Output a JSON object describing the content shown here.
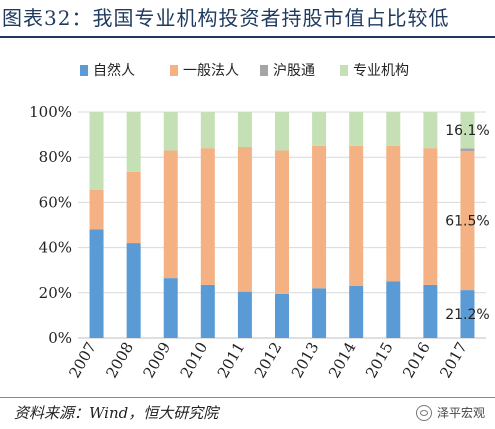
{
  "title": "图表32：我国专业机构投资者持股市值占比较低",
  "source": "资料来源：Wind，恒大研究院",
  "watermark": "泽平宏观",
  "chart_data": {
    "type": "bar",
    "stacked": true,
    "normalized": true,
    "categories": [
      "2007",
      "2008",
      "2009",
      "2010",
      "2011",
      "2012",
      "2013",
      "2014",
      "2015",
      "2016",
      "2017"
    ],
    "series": [
      {
        "name": "自然人",
        "color": "#5b9bd5",
        "values": [
          48,
          42,
          26.5,
          23.5,
          20.5,
          19.5,
          22,
          23,
          25,
          23.5,
          21.2
        ]
      },
      {
        "name": "一般法人",
        "color": "#f4b183",
        "values": [
          17.5,
          31.5,
          56.5,
          60.5,
          64,
          63.5,
          63,
          62,
          60,
          60.5,
          61.5
        ]
      },
      {
        "name": "沪股通",
        "color": "#a5a5a5",
        "values": [
          0,
          0,
          0,
          0,
          0,
          0,
          0,
          0,
          0,
          0,
          1.2
        ]
      },
      {
        "name": "专业机构",
        "color": "#c5e0b4",
        "values": [
          34.5,
          26.5,
          17,
          16,
          15.5,
          17,
          15,
          15,
          15,
          16,
          16.1
        ]
      }
    ],
    "ylim": [
      0,
      100
    ],
    "yticks": [
      "0%",
      "20%",
      "40%",
      "60%",
      "80%",
      "100%"
    ],
    "legend_position": "top",
    "data_labels": [
      {
        "category": "2017",
        "series": "专业机构",
        "text": "16.1%"
      },
      {
        "category": "2017",
        "series": "一般法人",
        "text": "61.5%"
      },
      {
        "category": "2017",
        "series": "自然人",
        "text": "21.2%"
      }
    ]
  }
}
